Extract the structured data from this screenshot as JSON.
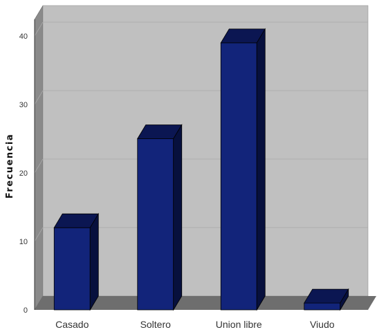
{
  "chart_data": {
    "type": "bar",
    "categories": [
      "Casado",
      "Soltero",
      "Union libre",
      "Viudo"
    ],
    "values": [
      12,
      25,
      39,
      1
    ],
    "title": "",
    "xlabel": "",
    "ylabel": "Frecuencia",
    "ylim": [
      0,
      40
    ],
    "yticks": [
      0,
      10,
      20,
      30,
      40
    ],
    "grid": true,
    "legend": "none",
    "style": "3d",
    "colors": {
      "bar_front": "#12247a",
      "bar_top": "#0b1652",
      "bar_side": "#07103d",
      "wall": "#c0c0c0",
      "wall_side": "#8a8a8a",
      "floor": "#6e6e6e"
    }
  }
}
